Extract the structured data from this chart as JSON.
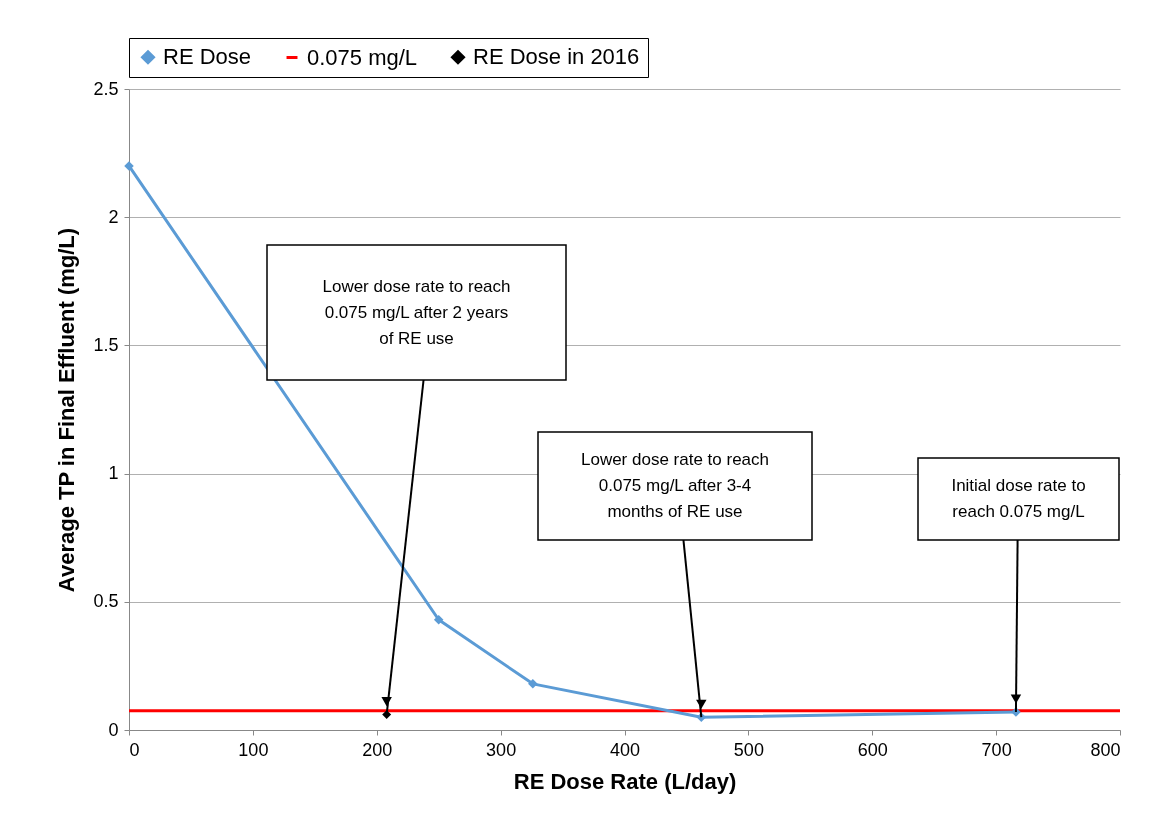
{
  "chart_data": {
    "type": "line",
    "xlabel": "RE Dose Rate (L/day)",
    "ylabel": "Average TP in Final Effluent (mg/L)",
    "xlim": [
      0,
      800
    ],
    "xticks": [
      0,
      100,
      200,
      300,
      400,
      500,
      600,
      700,
      800
    ],
    "ylim": [
      0,
      2.5
    ],
    "yticks": [
      0,
      0.5,
      1,
      1.5,
      2,
      2.5
    ],
    "grid": "y",
    "legend": "top",
    "marker": "diamond",
    "series": [
      {
        "name": "RE Dose",
        "color": "#5b9bd5",
        "x": [
          0,
          250,
          326,
          462,
          716
        ],
        "values": [
          2.2,
          0.43,
          0.18,
          0.05,
          0.07
        ]
      },
      {
        "name": "0.075 mg/L",
        "marker": "none",
        "color": "#ff0000",
        "x": [
          0,
          800
        ],
        "values": [
          0.075,
          0.075
        ]
      },
      {
        "name": "RE Dose in 2016",
        "type": "scatter",
        "color": "#000000",
        "x": [
          208
        ],
        "values": [
          0.06
        ]
      }
    ],
    "annotations": [
      {
        "text": "Lower dose rate to reach 0.075 mg/L after 2 years of RE use",
        "x": 208,
        "y": 0.06
      },
      {
        "text": "Lower dose rate to reach 0.075 mg/L after 3-4 months of RE use",
        "x": 462,
        "y": 0.05
      },
      {
        "text": "Initial dose rate to reach 0.075 mg/L",
        "x": 716,
        "y": 0.07
      }
    ]
  }
}
